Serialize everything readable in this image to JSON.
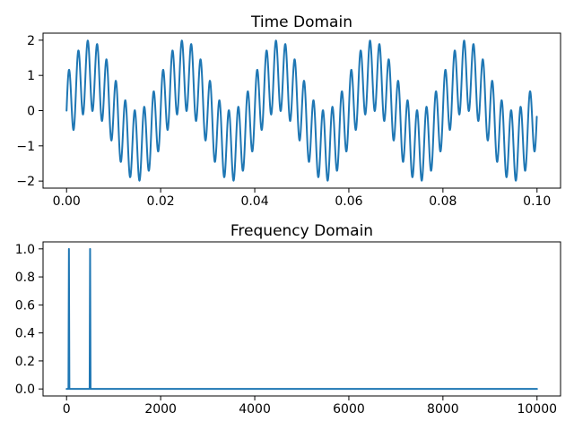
{
  "figure": {
    "background": "#ffffff",
    "line_color": "#1f77b4",
    "spine_color": "#000000",
    "text_color": "#000000"
  },
  "chart_data": [
    {
      "type": "line",
      "title": "Time Domain",
      "xlabel": "",
      "ylabel": "",
      "grid": false,
      "legend": null,
      "signal": {
        "components": [
          {
            "freq_hz": 50,
            "amplitude": 1
          },
          {
            "freq_hz": 500,
            "amplitude": 1
          }
        ],
        "duration_s": 0.1,
        "sample_rate_hz": 20000
      },
      "xlim": [
        -0.005,
        0.105
      ],
      "ylim": [
        -2.2,
        2.2
      ],
      "xticks": [
        0.0,
        0.02,
        0.04,
        0.06,
        0.08,
        0.1
      ],
      "xtick_labels": [
        "0.00",
        "0.02",
        "0.04",
        "0.06",
        "0.08",
        "0.10"
      ],
      "yticks": [
        -2,
        -1,
        0,
        1,
        2
      ],
      "ytick_labels": [
        "−2",
        "−1",
        "0",
        "1",
        "2"
      ]
    },
    {
      "type": "line",
      "title": "Frequency Domain",
      "xlabel": "",
      "ylabel": "",
      "grid": false,
      "legend": null,
      "spikes": [
        {
          "freq_hz": 50,
          "magnitude": 1.0
        },
        {
          "freq_hz": 500,
          "magnitude": 1.0
        }
      ],
      "baseline": 0.0,
      "bin_width_hz": 10,
      "x_range": [
        0,
        10000
      ],
      "xlim": [
        -500,
        10500
      ],
      "ylim": [
        -0.05,
        1.05
      ],
      "xticks": [
        0,
        2000,
        4000,
        6000,
        8000,
        10000
      ],
      "xtick_labels": [
        "0",
        "2000",
        "4000",
        "6000",
        "8000",
        "10000"
      ],
      "yticks": [
        0.0,
        0.2,
        0.4,
        0.6,
        0.8,
        1.0
      ],
      "ytick_labels": [
        "0.0",
        "0.2",
        "0.4",
        "0.6",
        "0.8",
        "1.0"
      ]
    }
  ]
}
